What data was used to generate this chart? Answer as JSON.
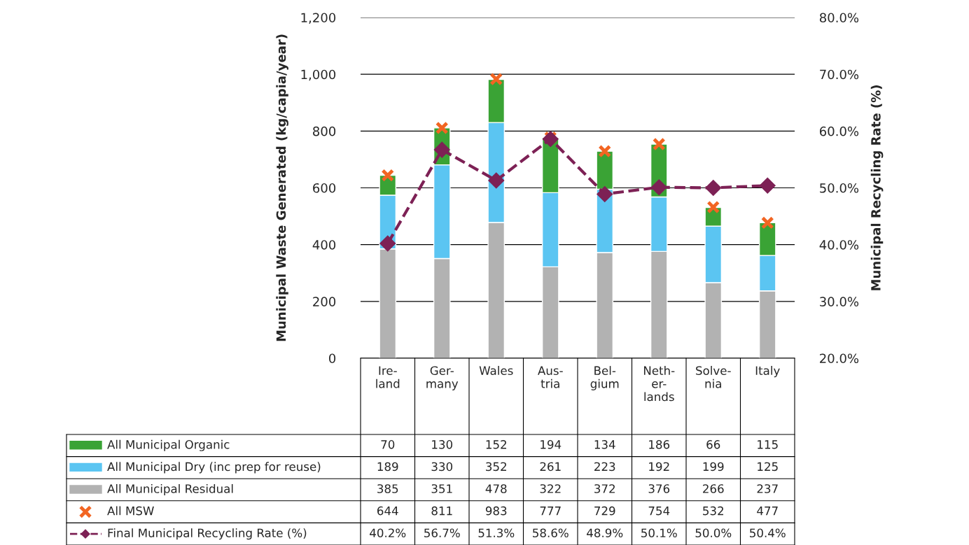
{
  "chart_data": {
    "type": "bar",
    "stacked": true,
    "categories": [
      "Ire-\nland",
      "Ger-\nmany",
      "Wales",
      "Aus-\ntria",
      "Bel-\ngium",
      "Neth-\ner-\nlands",
      "Solve-\nnia",
      "Italy"
    ],
    "ylabel": "Municipal Waste Generated (kg/capia/year)",
    "y2label": "Municipal Recycling Rate (%)",
    "ylim": [
      0,
      1200
    ],
    "yticks": [
      0,
      {
        "value": 200,
        "label": "200"
      },
      {
        "value": 400,
        "label": "400"
      },
      {
        "value": 600,
        "label": "600"
      },
      {
        "value": 800,
        "label": "800"
      },
      {
        "value": 1000,
        "label": "1,000"
      },
      {
        "value": 1200,
        "label": "1,200"
      }
    ],
    "y2lim": [
      20,
      80
    ],
    "y2ticks": [
      {
        "value": 20,
        "label": "20.0%"
      },
      {
        "value": 30,
        "label": "30.0%"
      },
      {
        "value": 40,
        "label": "40.0%"
      },
      {
        "value": 50,
        "label": "50.0%"
      },
      {
        "value": 60,
        "label": "60.0%"
      },
      {
        "value": 70,
        "label": "70.0%"
      },
      {
        "value": 80,
        "label": "80.0%"
      }
    ],
    "grid": "y",
    "legend": "bottom",
    "data_labels": true,
    "series": [
      {
        "name": "All Municipal Residual",
        "color": "#b2b2b2",
        "values": [
          385,
          351,
          478,
          322,
          372,
          376,
          266,
          237
        ]
      },
      {
        "name": "All Municipal Dry (inc prep for reuse)",
        "color": "#5bc5f2",
        "values": [
          189,
          330,
          352,
          261,
          223,
          192,
          199,
          125
        ]
      },
      {
        "name": "All Municipal Organic",
        "color": "#3aa335",
        "values": [
          70,
          130,
          152,
          194,
          134,
          186,
          66,
          115
        ]
      },
      {
        "name": "All MSW",
        "type": "scatter",
        "marker": "cross",
        "color": "#f26522",
        "values": [
          644,
          811,
          983,
          777,
          729,
          754,
          532,
          477
        ]
      },
      {
        "name": "Final Municipal Recycling Rate (%)",
        "type": "line",
        "axis": "y2",
        "marker": "diamond",
        "line_style": "dashed",
        "color": "#7d2155",
        "values": [
          40.2,
          56.7,
          51.3,
          58.6,
          48.9,
          50.1,
          50.0,
          50.4
        ],
        "value_labels": [
          "40.2%",
          "56.7%",
          "51.3%",
          "58.6%",
          "48.9%",
          "50.1%",
          "50.0%",
          "50.4%"
        ]
      }
    ]
  }
}
